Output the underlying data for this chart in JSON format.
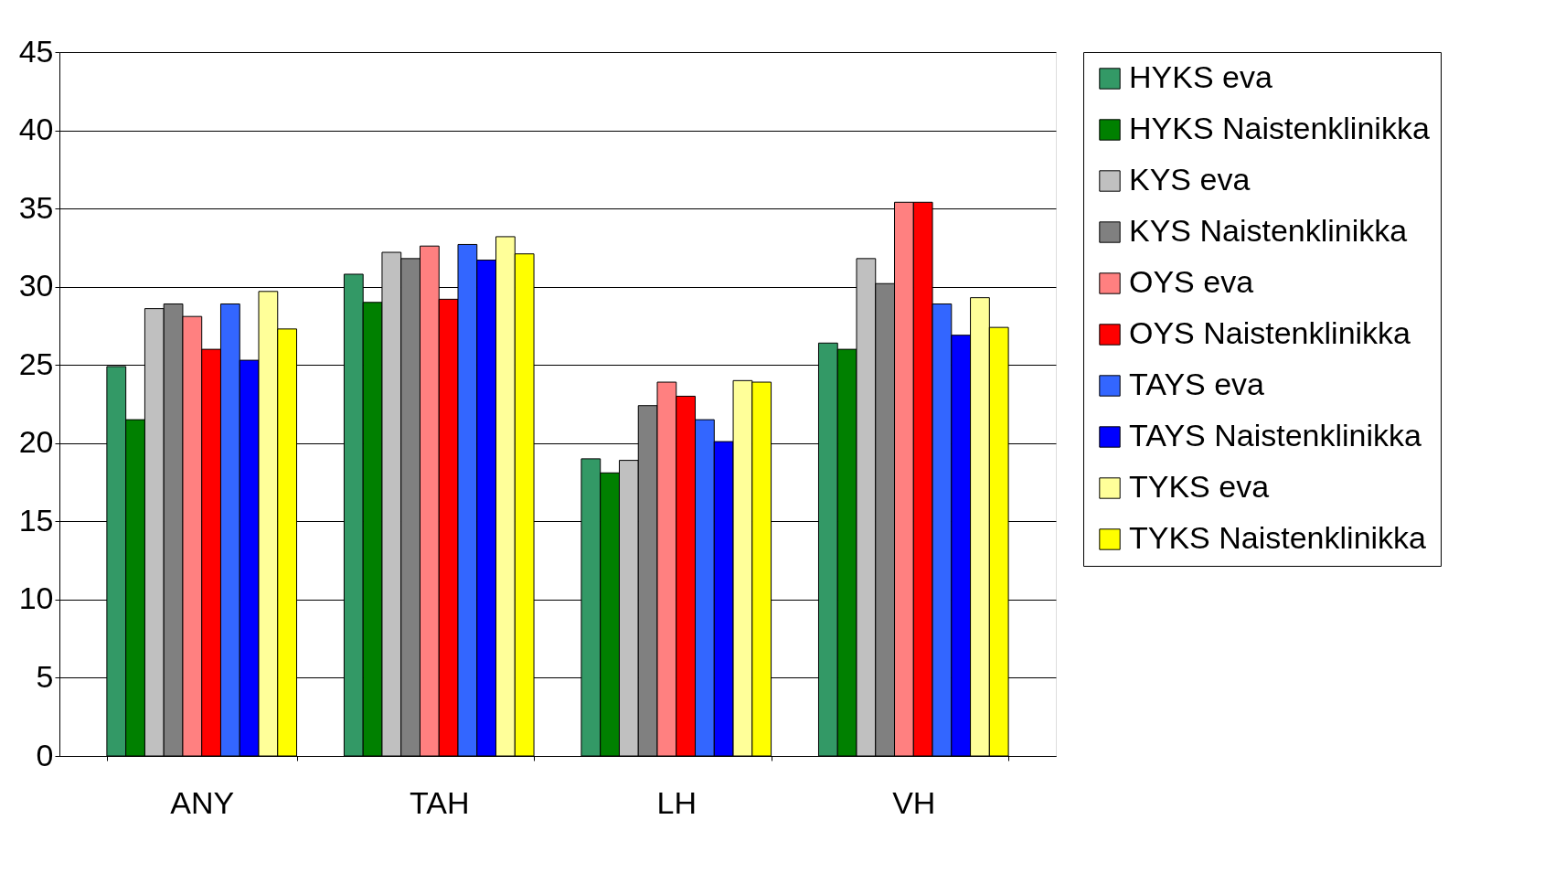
{
  "chart_data": {
    "type": "bar",
    "categories": [
      "ANY",
      "TAH",
      "LH",
      "VH"
    ],
    "series": [
      {
        "name": "HYKS eva",
        "color": "#339966",
        "values": [
          24.9,
          30.8,
          19.0,
          26.4
        ]
      },
      {
        "name": "HYKS Naistenklinikka",
        "color": "#008000",
        "values": [
          21.5,
          29.0,
          18.1,
          26.0
        ]
      },
      {
        "name": "KYS eva",
        "color": "#c0c0c0",
        "values": [
          28.6,
          32.2,
          18.9,
          31.8
        ]
      },
      {
        "name": "KYS Naistenklinikka",
        "color": "#808080",
        "values": [
          28.9,
          31.8,
          22.4,
          30.2
        ]
      },
      {
        "name": "OYS eva",
        "color": "#ff8080",
        "values": [
          28.1,
          32.6,
          23.9,
          35.4
        ]
      },
      {
        "name": "OYS Naistenklinikka",
        "color": "#ff0000",
        "values": [
          26.0,
          29.2,
          23.0,
          35.4
        ]
      },
      {
        "name": "TAYS eva",
        "color": "#3366ff",
        "values": [
          28.9,
          32.7,
          21.5,
          28.9
        ]
      },
      {
        "name": "TAYS Naistenklinikka",
        "color": "#0000ff",
        "values": [
          25.3,
          31.7,
          20.1,
          26.9
        ]
      },
      {
        "name": "TYKS eva",
        "color": "#ffff99",
        "values": [
          29.7,
          33.2,
          24.0,
          29.3
        ]
      },
      {
        "name": "TYKS Naistenklinikka",
        "color": "#ffff00",
        "values": [
          27.3,
          32.1,
          23.9,
          27.4
        ]
      }
    ],
    "ylim": [
      0,
      45
    ],
    "yticks": [
      0,
      5,
      10,
      15,
      20,
      25,
      30,
      35,
      40,
      45
    ],
    "grid": "y",
    "legend": "right"
  }
}
